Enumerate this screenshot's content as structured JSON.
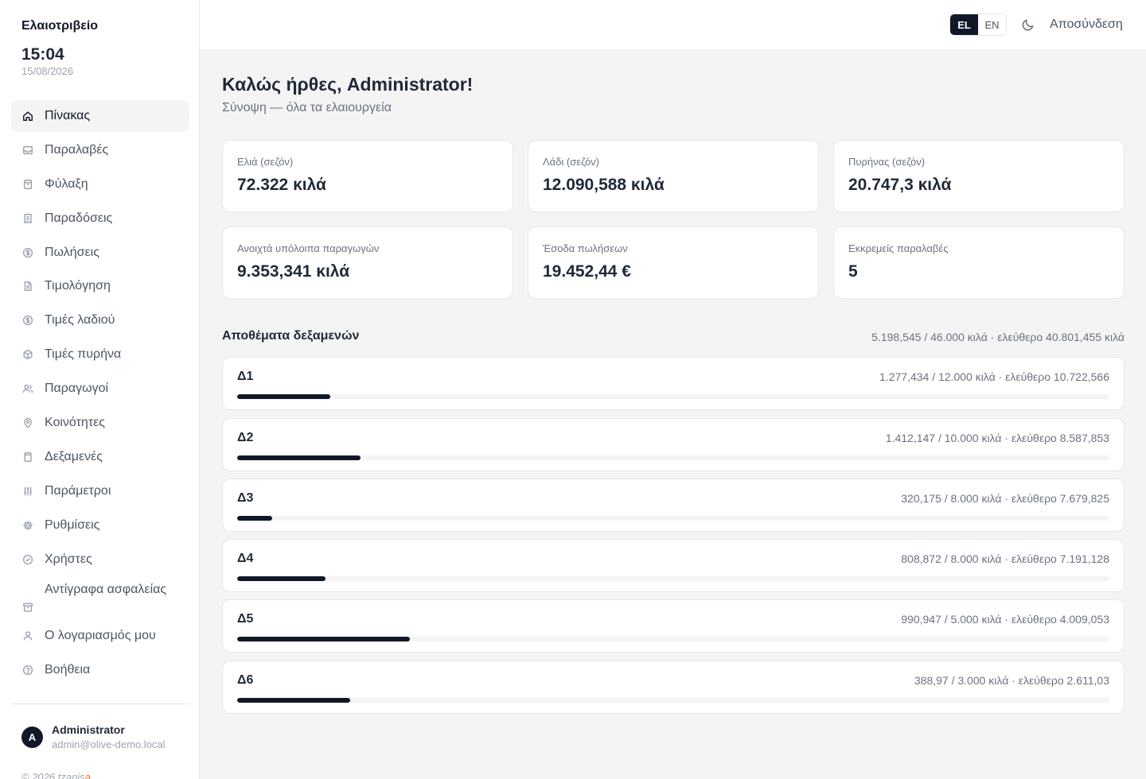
{
  "sidebar": {
    "brand": "Ελαιοτριβείο",
    "clock": "15:04",
    "date": "15/08/2026",
    "items": [
      {
        "label": "Πίνακας",
        "icon": "home-icon",
        "active": true
      },
      {
        "label": "Παραλαβές",
        "icon": "inbox-icon"
      },
      {
        "label": "Φύλαξη",
        "icon": "archive-icon"
      },
      {
        "label": "Παραδόσεις",
        "icon": "receipt-icon"
      },
      {
        "label": "Πωλήσεις",
        "icon": "dollar-circle-icon"
      },
      {
        "label": "Τιμολόγηση",
        "icon": "file-text-icon"
      },
      {
        "label": "Τιμές λαδιού",
        "icon": "dollar-circle-icon"
      },
      {
        "label": "Τιμές πυρήνα",
        "icon": "box-icon"
      },
      {
        "label": "Παραγωγοί",
        "icon": "users-icon"
      },
      {
        "label": "Κοινότητες",
        "icon": "map-pin-icon"
      },
      {
        "label": "Δεξαμενές",
        "icon": "cylinder-icon"
      },
      {
        "label": "Παράμετροι",
        "icon": "sliders-icon"
      },
      {
        "label": "Ρυθμίσεις",
        "icon": "gear-icon"
      },
      {
        "label": "Χρήστες",
        "icon": "check-circle-icon"
      },
      {
        "label": "Αντίγραφα ασφαλείας",
        "icon": "archive-box-icon"
      },
      {
        "label": "Ο λογαριασμός μου",
        "icon": "user-icon"
      },
      {
        "label": "Βοήθεια",
        "icon": "help-circle-icon"
      }
    ],
    "user": {
      "initial": "A",
      "name": "Administrator",
      "email": "admin@olive-demo.local"
    },
    "footer": {
      "prefix": "© 2026 tzanis",
      "accent": "a"
    }
  },
  "header": {
    "langs": [
      {
        "label": "EL",
        "active": true
      },
      {
        "label": "EN",
        "active": false
      }
    ],
    "theme_icon": "moon-icon",
    "logout": "Αποσύνδεση"
  },
  "main": {
    "welcome": "Καλώς ήρθες, Administrator!",
    "subtitle": "Σύνοψη — όλα τα ελαιουργεία",
    "stats": [
      {
        "label": "Ελιά (σεζόν)",
        "value": "72.322 κιλά"
      },
      {
        "label": "Λάδι (σεζόν)",
        "value": "12.090,588 κιλά"
      },
      {
        "label": "Πυρήνας (σεζόν)",
        "value": "20.747,3 κιλά"
      },
      {
        "label": "Ανοιχτά υπόλοιπα παραγωγών",
        "value": "9.353,341 κιλά"
      },
      {
        "label": "Έσοδα πωλήσεων",
        "value": "19.452,44 €"
      },
      {
        "label": "Εκκρεμείς παραλαβές",
        "value": "5"
      }
    ],
    "tanks": {
      "title": "Αποθέματα δεξαμενών",
      "summary": "5.198,545 / 46.000 κιλά · ελεύθερο 40.801,455 κιλά",
      "items": [
        {
          "name": "Δ1",
          "info": "1.277,434 / 12.000 κιλά · ελεύθερο 10.722,566",
          "fill": 0.1065
        },
        {
          "name": "Δ2",
          "info": "1.412,147 / 10.000 κιλά · ελεύθερο 8.587,853",
          "fill": 0.1412
        },
        {
          "name": "Δ3",
          "info": "320,175 / 8.000 κιλά · ελεύθερο 7.679,825",
          "fill": 0.04
        },
        {
          "name": "Δ4",
          "info": "808,872 / 8.000 κιλά · ελεύθερο 7.191,128",
          "fill": 0.1011
        },
        {
          "name": "Δ5",
          "info": "990,947 / 5.000 κιλά · ελεύθερο 4.009,053",
          "fill": 0.1982
        },
        {
          "name": "Δ6",
          "info": "388,97 / 3.000 κιλά · ελεύθερο 2.611,03",
          "fill": 0.1297
        }
      ]
    }
  }
}
